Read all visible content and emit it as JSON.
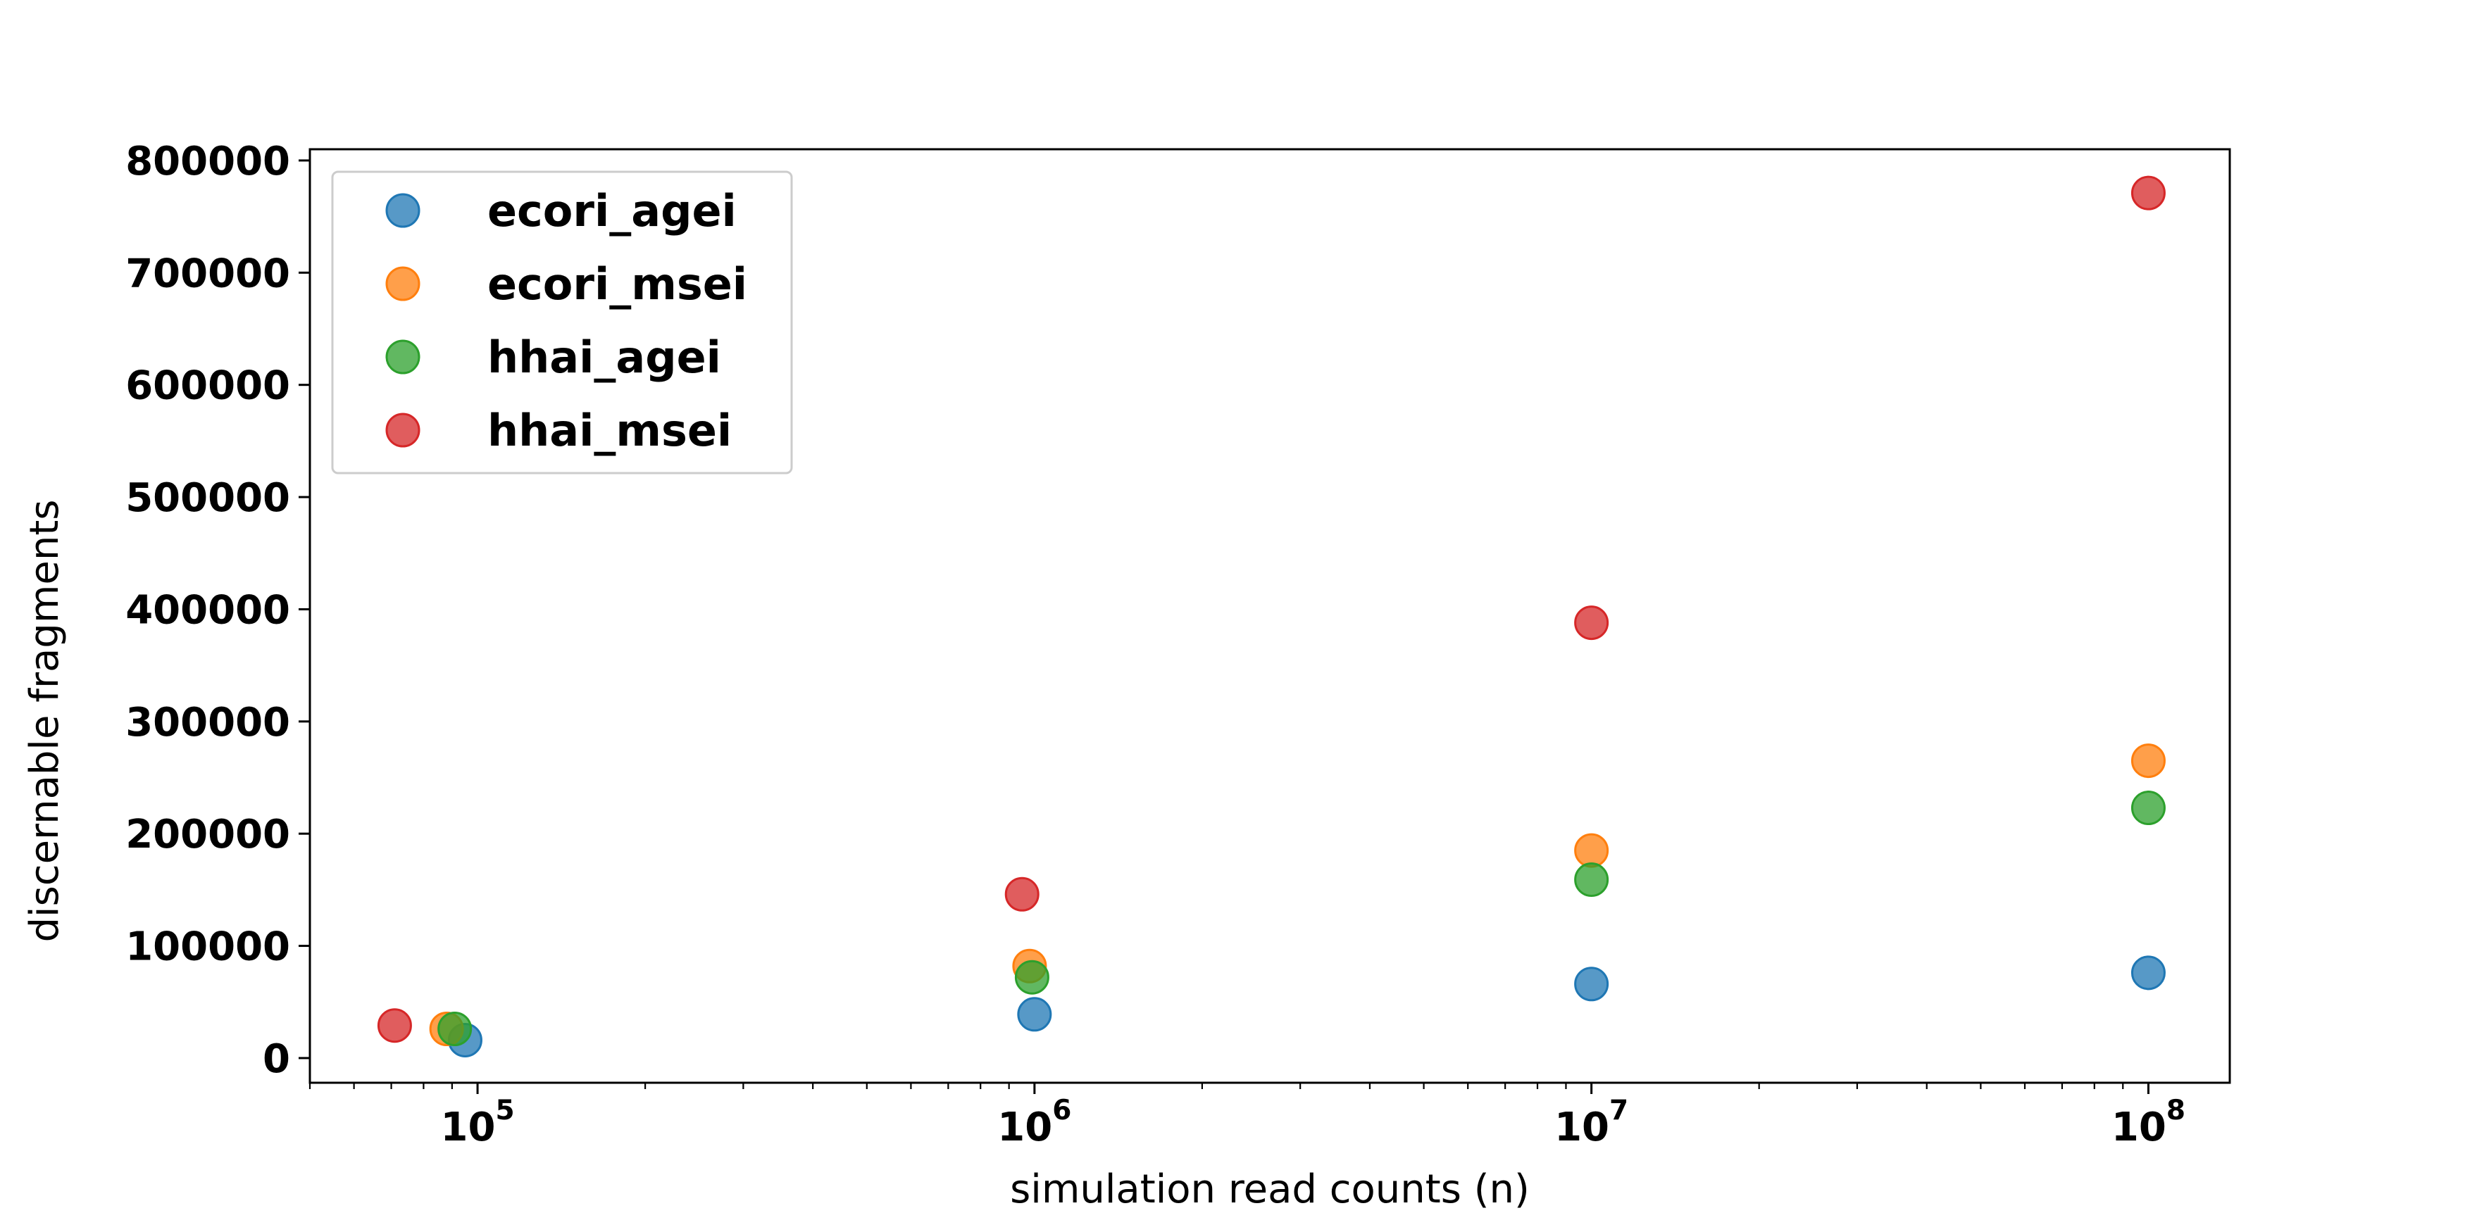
{
  "chart_data": {
    "type": "scatter",
    "title": "",
    "xlabel": "simulation read counts (n)",
    "ylabel": "discernable fragments",
    "x_scale": "log",
    "xlim": [
      50000,
      140000000
    ],
    "ylim": [
      -22000,
      810000
    ],
    "x_ticks": [
      {
        "value": 100000,
        "base": "10",
        "exp": "5"
      },
      {
        "value": 1000000,
        "base": "10",
        "exp": "6"
      },
      {
        "value": 10000000,
        "base": "10",
        "exp": "7"
      },
      {
        "value": 100000000,
        "base": "10",
        "exp": "8"
      }
    ],
    "y_ticks": [
      0,
      100000,
      200000,
      300000,
      400000,
      500000,
      600000,
      700000,
      800000
    ],
    "y_tick_labels": [
      "0",
      "100000",
      "200000",
      "300000",
      "400000",
      "500000",
      "600000",
      "700000",
      "800000"
    ],
    "grid": false,
    "legend_position": "top-left",
    "marker_opacity": 0.75,
    "series": [
      {
        "name": "ecori_agei",
        "color": "#1f77b4",
        "points": [
          {
            "x": 95000,
            "y": 16000
          },
          {
            "x": 1000000,
            "y": 39000
          },
          {
            "x": 10000000,
            "y": 66000
          },
          {
            "x": 100000000,
            "y": 76000
          }
        ]
      },
      {
        "name": "ecori_msei",
        "color": "#ff7f0e",
        "points": [
          {
            "x": 88000,
            "y": 26000
          },
          {
            "x": 980000,
            "y": 82000
          },
          {
            "x": 10000000,
            "y": 185000
          },
          {
            "x": 100000000,
            "y": 265000
          }
        ]
      },
      {
        "name": "hhai_agei",
        "color": "#2ca02c",
        "points": [
          {
            "x": 91000,
            "y": 26000
          },
          {
            "x": 990000,
            "y": 72000
          },
          {
            "x": 10000000,
            "y": 159000
          },
          {
            "x": 100000000,
            "y": 223000
          }
        ]
      },
      {
        "name": "hhai_msei",
        "color": "#d62728",
        "points": [
          {
            "x": 71000,
            "y": 29000
          },
          {
            "x": 950000,
            "y": 146000
          },
          {
            "x": 10000000,
            "y": 388000
          },
          {
            "x": 100000000,
            "y": 771000
          }
        ]
      }
    ]
  }
}
